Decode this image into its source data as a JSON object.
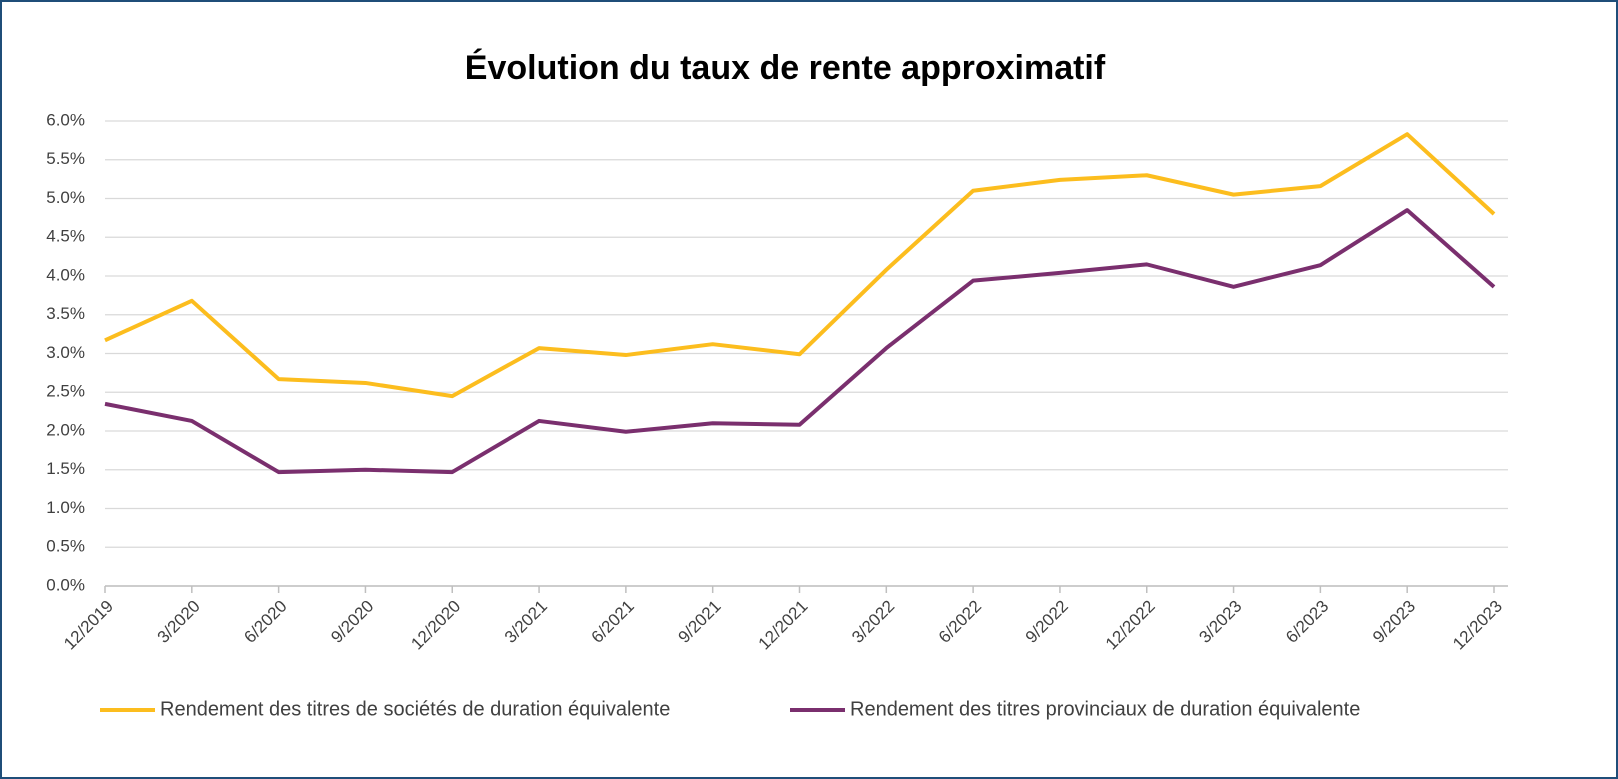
{
  "chart_data": {
    "type": "line",
    "title": "Évolution du taux de rente approximatif",
    "categories": [
      "12/2019",
      "3/2020",
      "6/2020",
      "9/2020",
      "12/2020",
      "3/2021",
      "6/2021",
      "9/2021",
      "12/2021",
      "3/2022",
      "6/2022",
      "9/2022",
      "12/2022",
      "3/2023",
      "6/2023",
      "9/2023",
      "12/2023"
    ],
    "series": [
      {
        "name": "Rendement des titres de sociétés de duration équivalente",
        "color": "#fcbd1e",
        "values": [
          3.17,
          3.68,
          2.67,
          2.62,
          2.45,
          3.07,
          2.98,
          3.12,
          2.99,
          4.08,
          5.1,
          5.24,
          5.3,
          5.05,
          5.16,
          5.83,
          4.8
        ]
      },
      {
        "name": "Rendement des titres provinciaux de duration équivalente",
        "color": "#7a2f6e",
        "values": [
          2.35,
          2.13,
          1.47,
          1.5,
          1.47,
          2.13,
          1.99,
          2.1,
          2.08,
          3.07,
          3.94,
          4.04,
          4.15,
          3.86,
          4.14,
          4.85,
          3.86
        ]
      }
    ],
    "ylim": [
      0,
      6
    ],
    "yticks": [
      {
        "value": 0,
        "label": "0.0%"
      },
      {
        "value": 0.5,
        "label": "0.5%"
      },
      {
        "value": 1,
        "label": "1.0%"
      },
      {
        "value": 1.5,
        "label": "1.5%"
      },
      {
        "value": 2,
        "label": "2.0%"
      },
      {
        "value": 2.5,
        "label": "2.5%"
      },
      {
        "value": 3,
        "label": "3.0%"
      },
      {
        "value": 3.5,
        "label": "3.5%"
      },
      {
        "value": 4,
        "label": "4.0%"
      },
      {
        "value": 4.5,
        "label": "4.5%"
      },
      {
        "value": 5,
        "label": "5.0%"
      },
      {
        "value": 5.5,
        "label": "5.5%"
      },
      {
        "value": 6,
        "label": "6.0%"
      }
    ],
    "grid": true,
    "legend": "bottom"
  }
}
